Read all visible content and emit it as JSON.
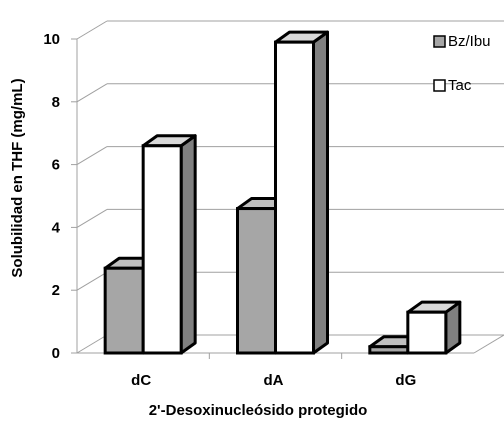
{
  "chart_data": {
    "type": "bar",
    "style": "3d-clustered-column",
    "categories": [
      "dC",
      "dA",
      "dG"
    ],
    "series": [
      {
        "name": "Bz/Ibu",
        "values": [
          2.7,
          4.6,
          0.2
        ],
        "color": "#a6a6a6"
      },
      {
        "name": "Tac",
        "values": [
          6.6,
          9.9,
          1.3
        ],
        "color": "#ffffff"
      }
    ],
    "title": "",
    "xlabel": "2'-Desoxinucleósido protegido",
    "ylabel": "Solubilidad en THF (mg/mL)",
    "ylim": [
      0,
      10
    ],
    "yticks": [
      "0",
      "2",
      "4",
      "6",
      "8",
      "10"
    ],
    "grid": true,
    "legend_position": "right"
  }
}
